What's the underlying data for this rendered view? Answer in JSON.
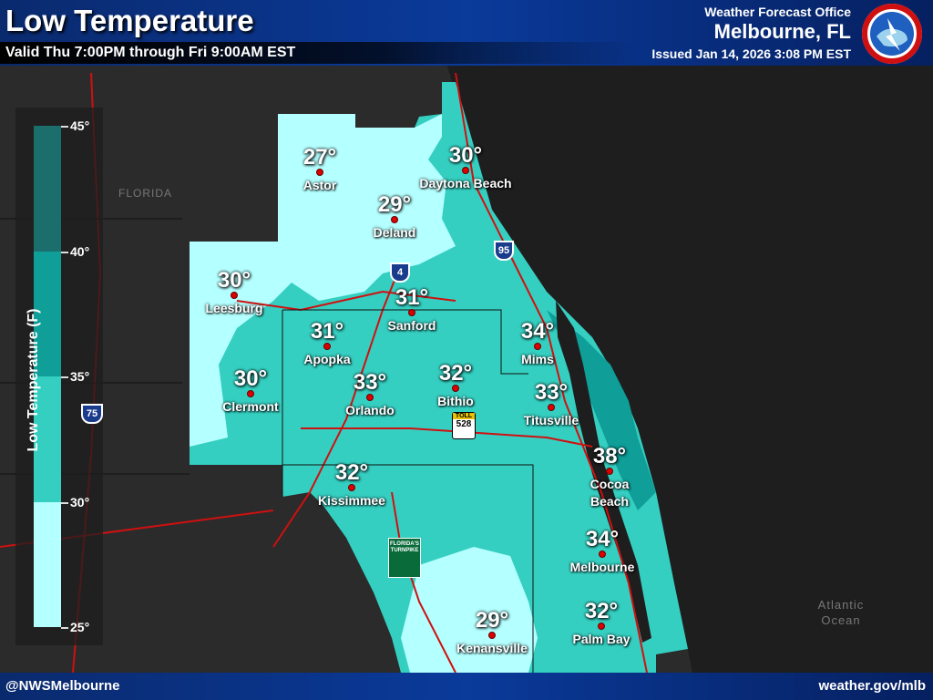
{
  "header": {
    "title": "Low Temperature",
    "valid": "Valid Thu 7:00PM through Fri 9:00AM EST",
    "office_label": "Weather Forecast Office",
    "office": "Melbourne, FL",
    "issued": "Issued Jan 14, 2026 3:08 PM EST",
    "logo": "National Weather Service"
  },
  "footer": {
    "left": "@NWSMelbourne",
    "right": "weather.gov/mlb"
  },
  "legend": {
    "title": "Low Temperature (F)",
    "ticks": [
      "45°",
      "40°",
      "35°",
      "30°",
      "25°"
    ],
    "bins": [
      {
        "range": [
          40,
          45
        ],
        "color": "#1b6e6c"
      },
      {
        "range": [
          35,
          40
        ],
        "color": "#0f9e98"
      },
      {
        "range": [
          30,
          35
        ],
        "color": "#35cfc1"
      },
      {
        "range": [
          25,
          30
        ],
        "color": "#b4ffff"
      }
    ]
  },
  "map_labels": {
    "state": "FLORIDA",
    "ocean": "Atlantic Ocean"
  },
  "shields": {
    "i95": "95",
    "i4": "4",
    "i75": "75",
    "sr528": "528",
    "toll": "TOLL",
    "turnpike": "FLORIDA'S TURNPIKE"
  },
  "cities": [
    {
      "name": "Astor",
      "temp": "27°"
    },
    {
      "name": "Daytona Beach",
      "temp": "30°"
    },
    {
      "name": "Deland",
      "temp": "29°"
    },
    {
      "name": "Leesburg",
      "temp": "30°"
    },
    {
      "name": "Sanford",
      "temp": "31°"
    },
    {
      "name": "Apopka",
      "temp": "31°"
    },
    {
      "name": "Mims",
      "temp": "34°"
    },
    {
      "name": "Clermont",
      "temp": "30°"
    },
    {
      "name": "Orlando",
      "temp": "33°"
    },
    {
      "name": "Bithio",
      "temp": "32°"
    },
    {
      "name": "Titusville",
      "temp": "33°"
    },
    {
      "name": "Cocoa Beach",
      "temp": "38°"
    },
    {
      "name": "Kissimmee",
      "temp": "32°"
    },
    {
      "name": "Melbourne",
      "temp": "34°"
    },
    {
      "name": "Palm Bay",
      "temp": "32°"
    },
    {
      "name": "Kenansville",
      "temp": "29°"
    }
  ],
  "colors": {
    "header": "#0a3a9a",
    "roads": "#d01010",
    "land": "#2b2b2b",
    "ocean": "#1e1e1e"
  }
}
